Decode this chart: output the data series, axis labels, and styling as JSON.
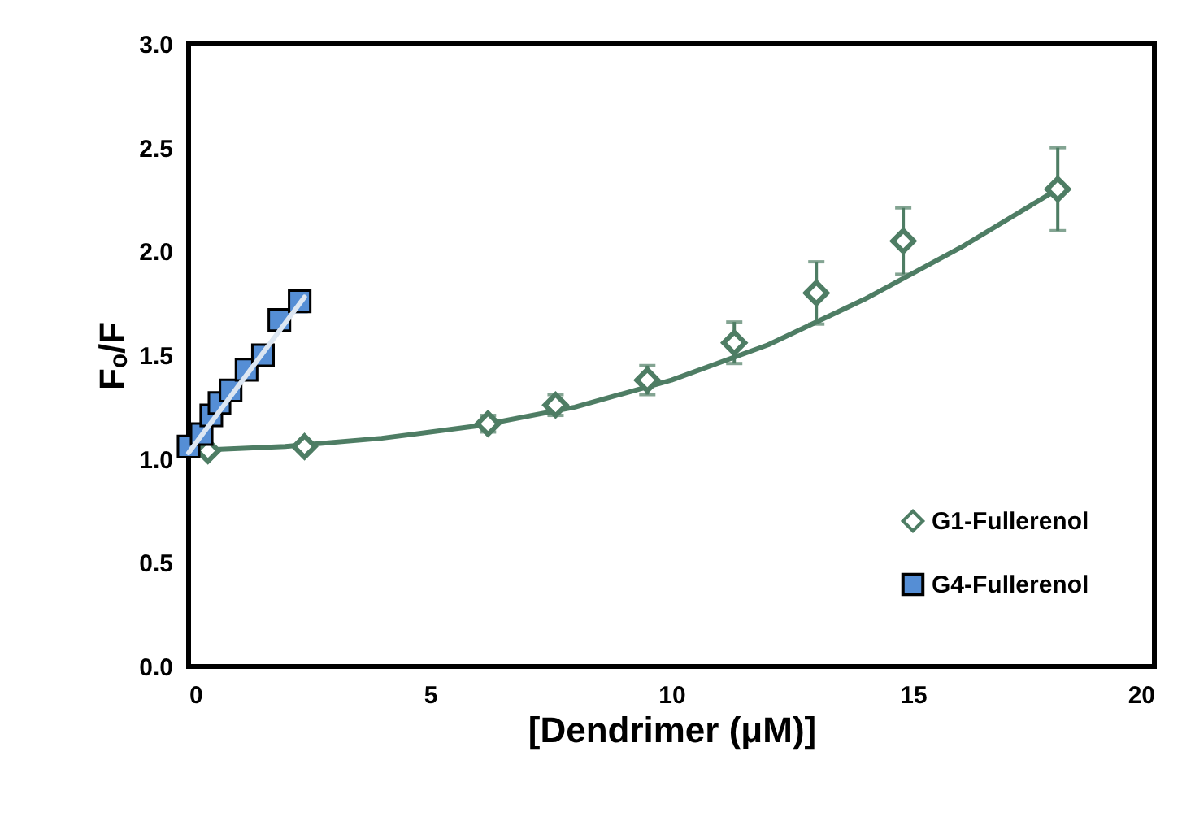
{
  "chart_data": {
    "type": "scatter",
    "xlabel": "[Dendrimer (μM)]",
    "ylabel": "Fₒ/F",
    "xlim": [
      0,
      20
    ],
    "xticks": [
      0,
      5,
      10,
      15,
      20
    ],
    "ylim": [
      0,
      3
    ],
    "yticks": [
      {
        "value": 0,
        "label": "0.0"
      },
      0.5,
      {
        "value": 1,
        "label": "1.0"
      },
      1.5,
      {
        "value": 2,
        "label": "2.0"
      },
      2.5,
      {
        "value": 3,
        "label": "3.0"
      }
    ],
    "grid": false,
    "legend": "bottom right",
    "series": [
      {
        "type": "line",
        "color": "#4e7d64",
        "marker": "none",
        "x": [
          0,
          2,
          4,
          6,
          8,
          10,
          12,
          14,
          16,
          18
        ],
        "values": [
          1.04,
          1.06,
          1.1,
          1.16,
          1.25,
          1.38,
          1.55,
          1.77,
          2.02,
          2.3
        ]
      },
      {
        "name": "G1-Fullerenol",
        "color": "#4e7d64",
        "marker": "diamond",
        "x": [
          0.4,
          2.4,
          6.2,
          7.6,
          9.5,
          11.3,
          13.0,
          14.8,
          18.0
        ],
        "values": [
          1.04,
          1.06,
          1.17,
          1.26,
          1.38,
          1.56,
          1.8,
          2.05,
          2.3
        ],
        "errors": [
          0.02,
          0.02,
          0.04,
          0.05,
          0.07,
          0.1,
          0.15,
          0.16,
          0.2
        ]
      },
      {
        "name": "G4-Fullerenol",
        "color": "#558ed5",
        "marker": "square",
        "x": [
          0,
          0.27,
          0.47,
          0.64,
          0.87,
          1.2,
          1.54,
          1.88,
          2.3
        ],
        "values": [
          1.06,
          1.12,
          1.21,
          1.27,
          1.33,
          1.43,
          1.5,
          1.67,
          1.76
        ],
        "errors": [
          0.02,
          0.02,
          0.02,
          0.02,
          0.03,
          0.03,
          0.03,
          0.04,
          0.05
        ]
      },
      {
        "type": "line",
        "color": "#dce6f2",
        "marker": "none",
        "x": [
          0,
          2.4
        ],
        "values": [
          1.03,
          1.78
        ]
      }
    ]
  }
}
